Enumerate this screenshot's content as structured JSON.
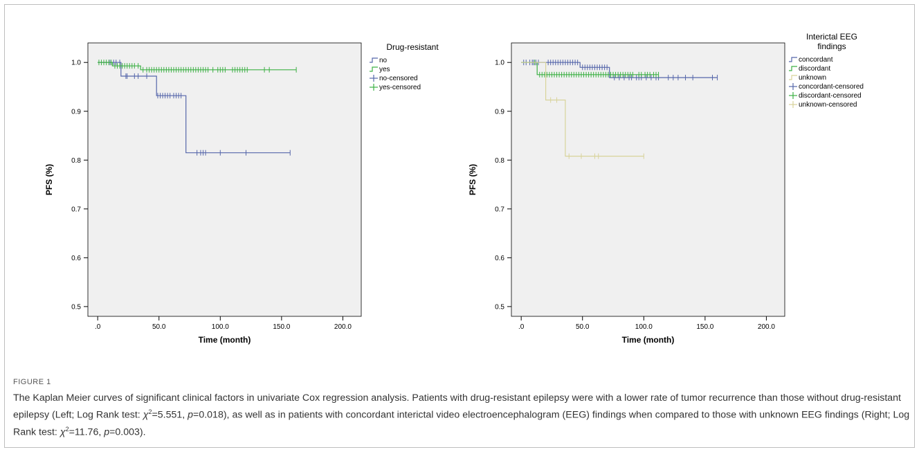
{
  "figure_label": "FIGURE 1",
  "caption_parts": [
    {
      "text": "The Kaplan Meier curves of significant clinical factors in univariate Cox regression analysis. Patients with drug-resistant epilepsy were with a lower rate of tumor recurrence than those without drug-resistant epilepsy (Left; Log Rank test: ",
      "style": "normal"
    },
    {
      "text": "χ",
      "style": "italic"
    },
    {
      "text": "2",
      "style": "sup"
    },
    {
      "text": "=5.551, ",
      "style": "normal"
    },
    {
      "text": "p",
      "style": "italic"
    },
    {
      "text": "=0.018), as well as in patients with concordant interictal video electroencephalogram (EEG) findings when compared to those with unknown EEG findings (Right; Log Rank test: ",
      "style": "normal"
    },
    {
      "text": "χ",
      "style": "italic"
    },
    {
      "text": "2",
      "style": "sup"
    },
    {
      "text": "=11.76, ",
      "style": "normal"
    },
    {
      "text": "p",
      "style": "italic"
    },
    {
      "text": "=0.003).",
      "style": "normal"
    }
  ],
  "chart_data": [
    {
      "type": "line",
      "subtype": "kaplan-meier",
      "title": "",
      "xlabel": "Time (month)",
      "ylabel": "PFS (%)",
      "xlim": [
        -8,
        215
      ],
      "ylim": [
        0.48,
        1.04
      ],
      "xticks": [
        0,
        50,
        100,
        150,
        200
      ],
      "xtick_labels": [
        ".0",
        "50.0",
        "100.0",
        "150.0",
        "200.0"
      ],
      "yticks": [
        0.5,
        0.6,
        0.7,
        0.8,
        0.9,
        1.0
      ],
      "ytick_labels": [
        "0.5",
        "0.6",
        "0.7",
        "0.8",
        "0.9",
        "1.0"
      ],
      "legend_title": "Drug-resistant",
      "legend_position": "right",
      "legend": [
        {
          "label": "no",
          "kind": "line",
          "color": "#5566aa"
        },
        {
          "label": "yes",
          "kind": "line",
          "color": "#3cb044"
        },
        {
          "label": "no-censored",
          "kind": "censor",
          "color": "#5566aa"
        },
        {
          "label": "yes-censored",
          "kind": "censor",
          "color": "#3cb044"
        }
      ],
      "series": [
        {
          "name": "no",
          "color": "#5566aa",
          "steps": [
            [
              0,
              1.0
            ],
            [
              19,
              1.0
            ],
            [
              19,
              0.972
            ],
            [
              48,
              0.972
            ],
            [
              48,
              0.932
            ],
            [
              72,
              0.932
            ],
            [
              72,
              0.815
            ],
            [
              157,
              0.815
            ]
          ],
          "censored": [
            [
              10,
              1.0
            ],
            [
              13,
              1.0
            ],
            [
              15,
              1.0
            ],
            [
              18,
              1.0
            ],
            [
              23,
              0.972
            ],
            [
              24,
              0.972
            ],
            [
              30,
              0.972
            ],
            [
              33,
              0.972
            ],
            [
              40,
              0.972
            ],
            [
              49,
              0.932
            ],
            [
              51,
              0.932
            ],
            [
              53,
              0.932
            ],
            [
              55,
              0.932
            ],
            [
              57,
              0.932
            ],
            [
              59,
              0.932
            ],
            [
              62,
              0.932
            ],
            [
              64,
              0.932
            ],
            [
              66,
              0.932
            ],
            [
              68,
              0.932
            ],
            [
              81,
              0.815
            ],
            [
              84,
              0.815
            ],
            [
              86,
              0.815
            ],
            [
              88,
              0.815
            ],
            [
              100,
              0.815
            ],
            [
              121,
              0.815
            ],
            [
              157,
              0.815
            ]
          ]
        },
        {
          "name": "yes",
          "color": "#3cb044",
          "steps": [
            [
              0,
              1.0
            ],
            [
              12,
              1.0
            ],
            [
              12,
              0.993
            ],
            [
              35,
              0.993
            ],
            [
              35,
              0.985
            ],
            [
              162,
              0.985
            ]
          ],
          "censored": [
            [
              1,
              1.0
            ],
            [
              3,
              1.0
            ],
            [
              5,
              1.0
            ],
            [
              7,
              1.0
            ],
            [
              9,
              1.0
            ],
            [
              11,
              1.0
            ],
            [
              14,
              0.993
            ],
            [
              16,
              0.993
            ],
            [
              18,
              0.993
            ],
            [
              20,
              0.993
            ],
            [
              22,
              0.993
            ],
            [
              24,
              0.993
            ],
            [
              26,
              0.993
            ],
            [
              28,
              0.993
            ],
            [
              30,
              0.993
            ],
            [
              33,
              0.993
            ],
            [
              37,
              0.985
            ],
            [
              40,
              0.985
            ],
            [
              42,
              0.985
            ],
            [
              44,
              0.985
            ],
            [
              46,
              0.985
            ],
            [
              48,
              0.985
            ],
            [
              50,
              0.985
            ],
            [
              52,
              0.985
            ],
            [
              54,
              0.985
            ],
            [
              56,
              0.985
            ],
            [
              58,
              0.985
            ],
            [
              60,
              0.985
            ],
            [
              62,
              0.985
            ],
            [
              64,
              0.985
            ],
            [
              66,
              0.985
            ],
            [
              68,
              0.985
            ],
            [
              70,
              0.985
            ],
            [
              72,
              0.985
            ],
            [
              74,
              0.985
            ],
            [
              76,
              0.985
            ],
            [
              78,
              0.985
            ],
            [
              80,
              0.985
            ],
            [
              82,
              0.985
            ],
            [
              84,
              0.985
            ],
            [
              86,
              0.985
            ],
            [
              88,
              0.985
            ],
            [
              90,
              0.985
            ],
            [
              94,
              0.985
            ],
            [
              98,
              0.985
            ],
            [
              100,
              0.985
            ],
            [
              102,
              0.985
            ],
            [
              104,
              0.985
            ],
            [
              110,
              0.985
            ],
            [
              112,
              0.985
            ],
            [
              114,
              0.985
            ],
            [
              116,
              0.985
            ],
            [
              118,
              0.985
            ],
            [
              120,
              0.985
            ],
            [
              122,
              0.985
            ],
            [
              136,
              0.985
            ],
            [
              140,
              0.985
            ],
            [
              162,
              0.985
            ]
          ]
        }
      ]
    },
    {
      "type": "line",
      "subtype": "kaplan-meier",
      "title": "",
      "xlabel": "Time (month)",
      "ylabel": "PFS (%)",
      "xlim": [
        -8,
        215
      ],
      "ylim": [
        0.48,
        1.04
      ],
      "xticks": [
        0,
        50,
        100,
        150,
        200
      ],
      "xtick_labels": [
        ".0",
        "50.0",
        "100.0",
        "150.0",
        "200.0"
      ],
      "yticks": [
        0.5,
        0.6,
        0.7,
        0.8,
        0.9,
        1.0
      ],
      "ytick_labels": [
        "0.5",
        "0.6",
        "0.7",
        "0.8",
        "0.9",
        "1.0"
      ],
      "legend_title": [
        "Interictal EEG",
        "findings"
      ],
      "legend_position": "right",
      "legend": [
        {
          "label": "concordant",
          "kind": "line",
          "color": "#5566aa"
        },
        {
          "label": "discordant",
          "kind": "line",
          "color": "#3cb044"
        },
        {
          "label": "unknown",
          "kind": "line",
          "color": "#d8d39a"
        },
        {
          "label": "concordant-censored",
          "kind": "censor",
          "color": "#5566aa"
        },
        {
          "label": "discordant-censored",
          "kind": "censor",
          "color": "#3cb044"
        },
        {
          "label": "unknown-censored",
          "kind": "censor",
          "color": "#d8d39a"
        }
      ],
      "series": [
        {
          "name": "concordant",
          "color": "#5566aa",
          "steps": [
            [
              0,
              1.0
            ],
            [
              48,
              1.0
            ],
            [
              48,
              0.99
            ],
            [
              72,
              0.99
            ],
            [
              72,
              0.969
            ],
            [
              160,
              0.969
            ]
          ],
          "censored": [
            [
              2,
              1.0
            ],
            [
              4,
              1.0
            ],
            [
              7,
              1.0
            ],
            [
              9,
              1.0
            ],
            [
              10,
              1.0
            ],
            [
              12,
              1.0
            ],
            [
              14,
              1.0
            ],
            [
              22,
              1.0
            ],
            [
              24,
              1.0
            ],
            [
              26,
              1.0
            ],
            [
              28,
              1.0
            ],
            [
              30,
              1.0
            ],
            [
              32,
              1.0
            ],
            [
              34,
              1.0
            ],
            [
              36,
              1.0
            ],
            [
              38,
              1.0
            ],
            [
              40,
              1.0
            ],
            [
              42,
              1.0
            ],
            [
              44,
              1.0
            ],
            [
              46,
              1.0
            ],
            [
              50,
              0.99
            ],
            [
              52,
              0.99
            ],
            [
              54,
              0.99
            ],
            [
              56,
              0.99
            ],
            [
              58,
              0.99
            ],
            [
              60,
              0.99
            ],
            [
              62,
              0.99
            ],
            [
              64,
              0.99
            ],
            [
              66,
              0.99
            ],
            [
              68,
              0.99
            ],
            [
              70,
              0.99
            ],
            [
              76,
              0.969
            ],
            [
              80,
              0.969
            ],
            [
              84,
              0.969
            ],
            [
              88,
              0.969
            ],
            [
              90,
              0.969
            ],
            [
              94,
              0.969
            ],
            [
              96,
              0.969
            ],
            [
              98,
              0.969
            ],
            [
              102,
              0.969
            ],
            [
              106,
              0.969
            ],
            [
              110,
              0.969
            ],
            [
              112,
              0.969
            ],
            [
              120,
              0.969
            ],
            [
              124,
              0.969
            ],
            [
              128,
              0.969
            ],
            [
              134,
              0.969
            ],
            [
              140,
              0.969
            ],
            [
              156,
              0.969
            ],
            [
              160,
              0.969
            ]
          ]
        },
        {
          "name": "discordant",
          "color": "#3cb044",
          "steps": [
            [
              0,
              1.0
            ],
            [
              13,
              1.0
            ],
            [
              13,
              0.975
            ],
            [
              112,
              0.975
            ]
          ],
          "censored": [
            [
              11,
              1.0
            ],
            [
              15,
              0.975
            ],
            [
              17,
              0.975
            ],
            [
              19,
              0.975
            ],
            [
              21,
              0.975
            ],
            [
              23,
              0.975
            ],
            [
              25,
              0.975
            ],
            [
              27,
              0.975
            ],
            [
              29,
              0.975
            ],
            [
              31,
              0.975
            ],
            [
              33,
              0.975
            ],
            [
              35,
              0.975
            ],
            [
              37,
              0.975
            ],
            [
              39,
              0.975
            ],
            [
              41,
              0.975
            ],
            [
              43,
              0.975
            ],
            [
              45,
              0.975
            ],
            [
              47,
              0.975
            ],
            [
              49,
              0.975
            ],
            [
              51,
              0.975
            ],
            [
              53,
              0.975
            ],
            [
              55,
              0.975
            ],
            [
              57,
              0.975
            ],
            [
              59,
              0.975
            ],
            [
              61,
              0.975
            ],
            [
              63,
              0.975
            ],
            [
              65,
              0.975
            ],
            [
              67,
              0.975
            ],
            [
              69,
              0.975
            ],
            [
              71,
              0.975
            ],
            [
              73,
              0.975
            ],
            [
              75,
              0.975
            ],
            [
              77,
              0.975
            ],
            [
              79,
              0.975
            ],
            [
              81,
              0.975
            ],
            [
              83,
              0.975
            ],
            [
              85,
              0.975
            ],
            [
              87,
              0.975
            ],
            [
              89,
              0.975
            ],
            [
              91,
              0.975
            ],
            [
              96,
              0.975
            ],
            [
              98,
              0.975
            ],
            [
              101,
              0.975
            ],
            [
              103,
              0.975
            ],
            [
              105,
              0.975
            ],
            [
              108,
              0.975
            ],
            [
              110,
              0.975
            ],
            [
              112,
              0.975
            ]
          ]
        },
        {
          "name": "unknown",
          "color": "#d8d39a",
          "steps": [
            [
              0,
              1.0
            ],
            [
              20,
              1.0
            ],
            [
              20,
              0.923
            ],
            [
              36,
              0.923
            ],
            [
              36,
              0.808
            ],
            [
              100,
              0.808
            ]
          ],
          "censored": [
            [
              24,
              0.923
            ],
            [
              29,
              0.923
            ],
            [
              39,
              0.808
            ],
            [
              49,
              0.808
            ],
            [
              60,
              0.808
            ],
            [
              63,
              0.808
            ],
            [
              100,
              0.808
            ]
          ]
        }
      ]
    }
  ]
}
